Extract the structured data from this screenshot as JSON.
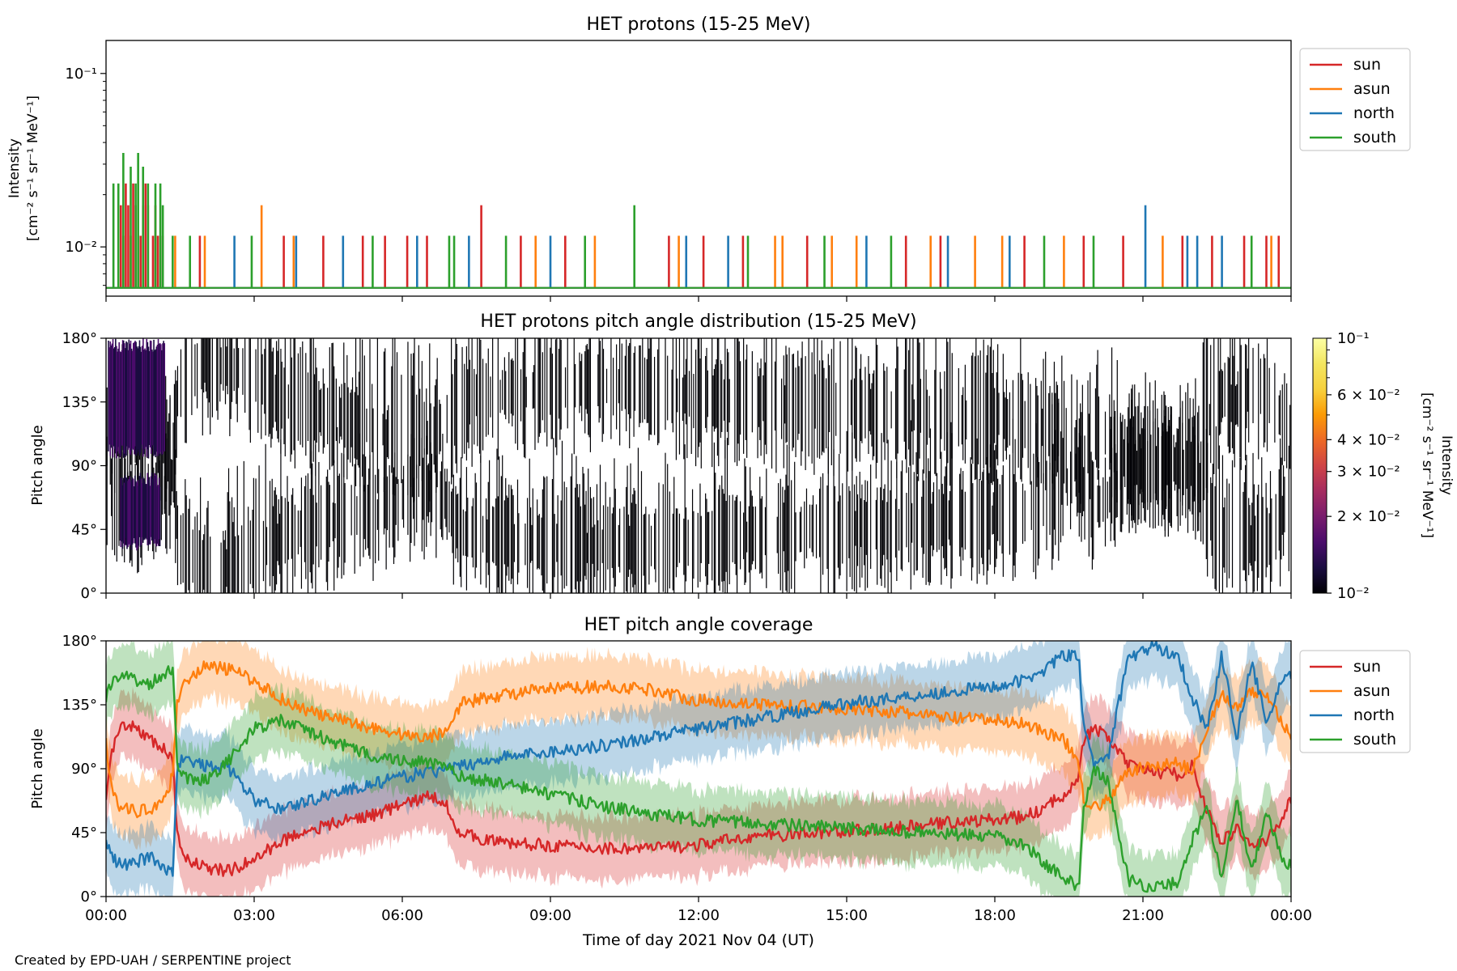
{
  "footer": "Created by EPD-UAH / SERPENTINE project",
  "colors": {
    "sun": "#d62728",
    "asun": "#ff7f0e",
    "north": "#1f77b4",
    "south": "#2ca02c"
  },
  "chart_data": [
    {
      "type": "line",
      "title": "HET protons (15-25 MeV)",
      "ylabel": [
        "Intensity",
        "[cm⁻² s⁻¹ sr⁻¹ MeV⁻¹]"
      ],
      "yscale": "log",
      "ylim": [
        0.0052,
        0.155
      ],
      "yticks": [
        {
          "value": 0.1,
          "label": "10⁻¹"
        },
        {
          "value": 0.01,
          "label": "10⁻²"
        }
      ],
      "xlim": [
        0,
        24
      ],
      "x_ticklabels_shown": false,
      "legend": {
        "placement": "outside right, top",
        "entries": [
          "sun",
          "asun",
          "north",
          "south"
        ]
      },
      "baseline_value": 0.0058,
      "single_count_value": 0.0116,
      "series": [
        {
          "name": "sun",
          "color": "#d62728",
          "spikes": [
            [
              0.3,
              0.0174
            ],
            [
              0.35,
              0.0116
            ],
            [
              0.4,
              0.0232
            ],
            [
              0.45,
              0.0174
            ],
            [
              0.55,
              0.0232
            ],
            [
              0.6,
              0.0174
            ],
            [
              0.7,
              0.0116
            ],
            [
              0.75,
              0.0174
            ],
            [
              0.8,
              0.0232
            ],
            [
              0.85,
              0.0174
            ],
            [
              0.95,
              0.0116
            ],
            [
              1.0,
              0.0174
            ],
            [
              1.05,
              0.0116
            ],
            [
              1.15,
              0.0116
            ],
            [
              1.9,
              0.0116
            ],
            [
              3.6,
              0.0116
            ],
            [
              4.4,
              0.0116
            ],
            [
              5.2,
              0.0116
            ],
            [
              5.65,
              0.0116
            ],
            [
              6.1,
              0.0116
            ],
            [
              6.5,
              0.0116
            ],
            [
              7.6,
              0.0174
            ],
            [
              8.4,
              0.0116
            ],
            [
              9.3,
              0.0116
            ],
            [
              11.4,
              0.0116
            ],
            [
              12.1,
              0.0116
            ],
            [
              12.9,
              0.0116
            ],
            [
              14.2,
              0.0116
            ],
            [
              16.2,
              0.0116
            ],
            [
              16.9,
              0.0116
            ],
            [
              18.6,
              0.0116
            ],
            [
              19.8,
              0.0116
            ],
            [
              20.6,
              0.0116
            ],
            [
              21.8,
              0.0116
            ],
            [
              22.4,
              0.0116
            ],
            [
              23.05,
              0.0116
            ],
            [
              23.5,
              0.0116
            ],
            [
              23.75,
              0.0116
            ]
          ]
        },
        {
          "name": "asun",
          "color": "#ff7f0e",
          "spikes": [
            [
              0.5,
              0.0116
            ],
            [
              1.4,
              0.0116
            ],
            [
              2.0,
              0.0116
            ],
            [
              3.15,
              0.0174
            ],
            [
              3.8,
              0.0116
            ],
            [
              8.7,
              0.0116
            ],
            [
              9.9,
              0.0116
            ],
            [
              11.6,
              0.0116
            ],
            [
              13.55,
              0.0116
            ],
            [
              13.7,
              0.0116
            ],
            [
              14.7,
              0.0116
            ],
            [
              15.2,
              0.0116
            ],
            [
              16.7,
              0.0116
            ],
            [
              17.6,
              0.0116
            ],
            [
              18.15,
              0.0116
            ],
            [
              19.4,
              0.0116
            ],
            [
              21.4,
              0.0116
            ],
            [
              23.6,
              0.0116
            ]
          ]
        },
        {
          "name": "north",
          "color": "#1f77b4",
          "spikes": [
            [
              2.6,
              0.0116
            ],
            [
              3.85,
              0.0116
            ],
            [
              4.8,
              0.0116
            ],
            [
              6.3,
              0.0116
            ],
            [
              7.35,
              0.0116
            ],
            [
              9.0,
              0.0116
            ],
            [
              11.75,
              0.0116
            ],
            [
              12.6,
              0.0116
            ],
            [
              15.4,
              0.0116
            ],
            [
              17.05,
              0.0116
            ],
            [
              18.3,
              0.0116
            ],
            [
              21.05,
              0.0174
            ],
            [
              21.9,
              0.0116
            ],
            [
              22.1,
              0.0116
            ],
            [
              22.6,
              0.0116
            ]
          ]
        },
        {
          "name": "south",
          "color": "#2ca02c",
          "spikes": [
            [
              0.15,
              0.0232
            ],
            [
              0.25,
              0.0232
            ],
            [
              0.35,
              0.0348
            ],
            [
              0.5,
              0.029
            ],
            [
              0.6,
              0.0232
            ],
            [
              0.65,
              0.0348
            ],
            [
              0.75,
              0.029
            ],
            [
              0.85,
              0.0232
            ],
            [
              1.0,
              0.0232
            ],
            [
              1.1,
              0.0232
            ],
            [
              1.15,
              0.0174
            ],
            [
              1.35,
              0.0116
            ],
            [
              1.7,
              0.0116
            ],
            [
              2.95,
              0.0116
            ],
            [
              5.4,
              0.0116
            ],
            [
              6.95,
              0.0116
            ],
            [
              7.05,
              0.0116
            ],
            [
              8.1,
              0.0116
            ],
            [
              9.7,
              0.0116
            ],
            [
              10.7,
              0.0174
            ],
            [
              13.0,
              0.0116
            ],
            [
              14.55,
              0.0116
            ],
            [
              15.9,
              0.0116
            ],
            [
              19.0,
              0.0116
            ],
            [
              20.0,
              0.0116
            ],
            [
              23.2,
              0.0116
            ]
          ]
        }
      ]
    },
    {
      "type": "heatmap",
      "title": "HET protons pitch angle distribution (15-25 MeV)",
      "ylabel": "Pitch angle",
      "ylim": [
        0,
        180
      ],
      "yticks": [
        "0°",
        "45°",
        "90°",
        "135°",
        "180°"
      ],
      "xlim": [
        0,
        24
      ],
      "x_ticklabels_shown": false,
      "colorbar": {
        "label": [
          "Intensity",
          "[cm⁻² s⁻¹ sr⁻¹ MeV⁻¹]"
        ],
        "scale": "log",
        "range": [
          0.01,
          0.1
        ],
        "colormap": "inferno",
        "ticks": [
          {
            "value": 0.1,
            "label": "10⁻¹"
          },
          {
            "value": 0.06,
            "label": "6 × 10⁻²"
          },
          {
            "value": 0.04,
            "label": "4 × 10⁻²"
          },
          {
            "value": 0.03,
            "label": "3 × 10⁻²"
          },
          {
            "value": 0.02,
            "label": "2 × 10⁻²"
          },
          {
            "value": 0.01,
            "label": "10⁻²"
          }
        ]
      },
      "dominant_value": 0.0058,
      "bright_region": {
        "x": [
          0.05,
          1.2
        ],
        "pitch": [
          95,
          180
        ],
        "value": 0.016
      },
      "bright_region_2": {
        "x": [
          0.3,
          1.1
        ],
        "pitch": [
          30,
          85
        ],
        "value": 0.012
      }
    },
    {
      "type": "line",
      "title": "HET pitch angle coverage",
      "ylabel": "Pitch angle",
      "xlabel": "Time of day 2021 Nov 04 (UT)",
      "ylim": [
        0,
        180
      ],
      "yticks": [
        "0°",
        "45°",
        "90°",
        "135°",
        "180°"
      ],
      "xlim": [
        0,
        24
      ],
      "xticks": [
        "00:00",
        "03:00",
        "06:00",
        "09:00",
        "12:00",
        "15:00",
        "18:00",
        "21:00",
        "00:00"
      ],
      "legend": {
        "placement": "outside right, top",
        "entries": [
          "sun",
          "asun",
          "north",
          "south"
        ]
      },
      "band_halfwidth_deg": 22,
      "series": [
        {
          "name": "sun",
          "color": "#d62728",
          "x": [
            0,
            0.1,
            0.3,
            0.6,
            0.9,
            1.2,
            1.35,
            1.45,
            1.6,
            2.0,
            2.5,
            3.0,
            3.5,
            4.0,
            4.5,
            5.0,
            5.5,
            6.0,
            6.5,
            6.85,
            7.0,
            7.2,
            8.0,
            9.0,
            10.0,
            11.0,
            12.0,
            13.0,
            14.0,
            15.0,
            16.0,
            17.0,
            18.0,
            18.6,
            19.0,
            19.4,
            19.7,
            19.8,
            20.0,
            20.3,
            20.7,
            21.2,
            21.7,
            22.0,
            22.3,
            22.6,
            22.9,
            23.2,
            23.5,
            23.8,
            24.0
          ],
          "y": [
            72,
            100,
            118,
            120,
            110,
            103,
            95,
            40,
            28,
            20,
            18,
            26,
            38,
            46,
            50,
            55,
            58,
            65,
            70,
            68,
            55,
            44,
            38,
            36,
            34,
            34,
            36,
            42,
            44,
            46,
            48,
            52,
            54,
            56,
            62,
            72,
            85,
            110,
            118,
            112,
            92,
            88,
            86,
            92,
            60,
            38,
            48,
            36,
            38,
            55,
            68
          ]
        },
        {
          "name": "asun",
          "color": "#ff7f0e",
          "x": [
            0,
            0.1,
            0.3,
            0.6,
            0.9,
            1.2,
            1.35,
            1.45,
            1.6,
            2.0,
            2.5,
            3.0,
            3.5,
            4.0,
            4.5,
            5.0,
            5.5,
            6.0,
            6.5,
            6.85,
            7.0,
            7.2,
            8.0,
            9.0,
            10.0,
            11.0,
            12.0,
            13.0,
            14.0,
            15.0,
            16.0,
            17.0,
            18.0,
            18.6,
            19.0,
            19.4,
            19.7,
            19.8,
            20.0,
            20.3,
            20.7,
            21.2,
            21.7,
            22.0,
            22.3,
            22.6,
            22.9,
            23.2,
            23.5,
            23.8,
            24.0
          ],
          "y": [
            108,
            80,
            62,
            60,
            62,
            70,
            85,
            140,
            152,
            162,
            160,
            152,
            140,
            132,
            126,
            122,
            118,
            114,
            112,
            116,
            126,
            136,
            142,
            146,
            148,
            146,
            138,
            136,
            134,
            132,
            130,
            126,
            124,
            122,
            116,
            110,
            95,
            70,
            62,
            68,
            88,
            92,
            94,
            88,
            120,
            142,
            132,
            144,
            142,
            125,
            112
          ]
        },
        {
          "name": "north",
          "color": "#1f77b4",
          "x": [
            0,
            0.1,
            0.3,
            0.6,
            0.9,
            1.2,
            1.35,
            1.45,
            1.6,
            2.0,
            2.5,
            3.0,
            3.5,
            4.0,
            4.5,
            5.0,
            5.5,
            6.0,
            6.5,
            6.85,
            7.0,
            7.2,
            8.0,
            9.0,
            10.0,
            11.0,
            12.0,
            13.0,
            14.0,
            15.0,
            16.0,
            17.0,
            18.0,
            18.6,
            19.0,
            19.4,
            19.7,
            19.8,
            20.0,
            20.3,
            20.7,
            21.2,
            21.7,
            22.0,
            22.3,
            22.6,
            22.9,
            23.2,
            23.5,
            23.8,
            24.0
          ],
          "y": [
            40,
            28,
            22,
            24,
            28,
            20,
            18,
            95,
            96,
            92,
            90,
            68,
            62,
            66,
            72,
            76,
            80,
            84,
            88,
            88,
            90,
            92,
            98,
            102,
            106,
            112,
            118,
            124,
            130,
            136,
            140,
            144,
            148,
            152,
            160,
            170,
            168,
            120,
            92,
            100,
            168,
            176,
            170,
            140,
            118,
            170,
            112,
            165,
            122,
            150,
            155
          ]
        },
        {
          "name": "south",
          "color": "#2ca02c",
          "x": [
            0,
            0.1,
            0.3,
            0.6,
            0.9,
            1.2,
            1.35,
            1.45,
            1.6,
            2.0,
            2.5,
            3.0,
            3.5,
            4.0,
            4.5,
            5.0,
            5.5,
            6.0,
            6.5,
            6.85,
            7.0,
            7.2,
            8.0,
            9.0,
            10.0,
            11.0,
            12.0,
            13.0,
            14.0,
            15.0,
            16.0,
            17.0,
            18.0,
            18.6,
            19.0,
            19.4,
            19.7,
            19.8,
            20.0,
            20.3,
            20.7,
            21.2,
            21.7,
            22.0,
            22.3,
            22.6,
            22.9,
            23.2,
            23.5,
            23.8,
            24.0
          ],
          "y": [
            138,
            150,
            158,
            152,
            150,
            158,
            160,
            92,
            84,
            82,
            96,
            118,
            124,
            118,
            110,
            104,
            98,
            96,
            94,
            92,
            88,
            84,
            80,
            72,
            64,
            58,
            54,
            52,
            50,
            48,
            46,
            44,
            42,
            36,
            24,
            12,
            8,
            62,
            90,
            80,
            12,
            6,
            10,
            40,
            62,
            12,
            70,
            18,
            58,
            28,
            22
          ]
        }
      ]
    }
  ]
}
